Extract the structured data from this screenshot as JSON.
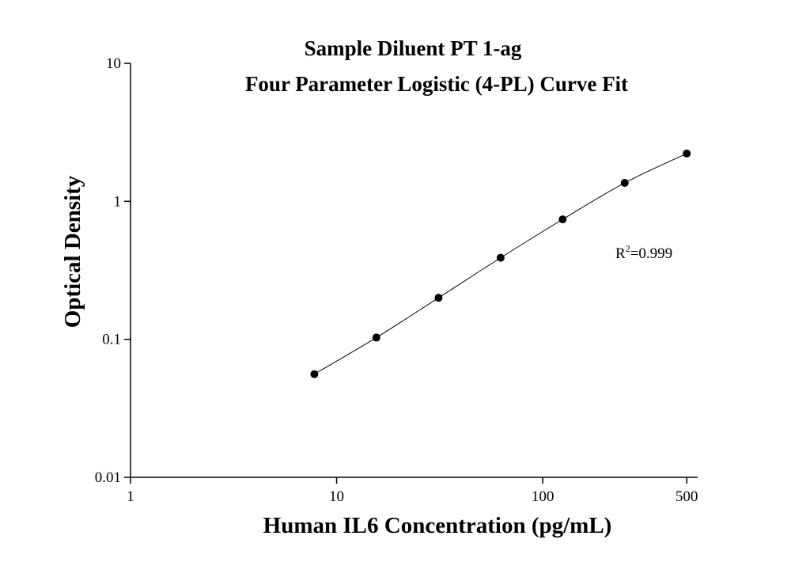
{
  "chart_data": {
    "type": "scatter",
    "title": [
      "Sample Diluent PT 1-ag",
      "Four Parameter Logistic (4-PL) Curve Fit"
    ],
    "x_label": "Human IL6 Concentration (pg/mL)",
    "y_label": "Optical Density",
    "annotation": {
      "base": "R",
      "sup": "2",
      "text": "=0.999"
    },
    "x": [
      7.8,
      15.6,
      31.25,
      62.5,
      125,
      250,
      500
    ],
    "series": [
      {
        "name": "Optical Density",
        "color": "#000000",
        "values": [
          0.056,
          0.103,
          0.2,
          0.39,
          0.74,
          1.36,
          2.22
        ]
      }
    ],
    "curve": true,
    "x_log": true,
    "y_log": true,
    "xlim": [
      1,
      565
    ],
    "xticks": [
      1,
      10,
      100,
      500
    ],
    "ylim": [
      0.01,
      10
    ],
    "yticks": [
      0.01,
      0.1,
      1,
      10
    ]
  }
}
